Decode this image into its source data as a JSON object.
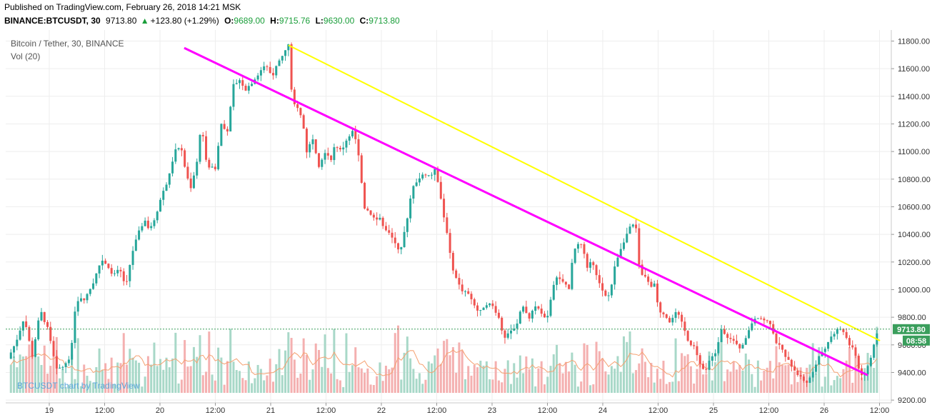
{
  "header": {
    "published": "Published on TradingView.com, February 26, 2018 14:21 MSK",
    "symbol": "BINANCE:BTCUSDT, 30",
    "last": "9713.80",
    "change": "+123.80 (+1.29%)",
    "o_label": "O:",
    "o_value": "9689.00",
    "h_label": "H:",
    "h_value": "9715.76",
    "l_label": "L:",
    "l_value": "9630.00",
    "c_label": "C:",
    "c_value": "9713.80"
  },
  "legend": {
    "title": "Bitcoin / Tether, 30, BINANCE",
    "volume": "Vol (20)"
  },
  "watermark": "BTCUSDT chart by TradingView",
  "colors": {
    "up": "#26a69a",
    "down": "#ef5350",
    "up_vol": "#a8d8c8",
    "down_vol": "#f4b0b0",
    "trend_magenta": "#ff00ff",
    "trend_yellow": "#ffff00",
    "last_price_bg": "#3a9e5c",
    "vol_ma": "#f5a070"
  },
  "chart_data": {
    "type": "candlestick",
    "ylim": [
      9180,
      11880
    ],
    "y_ticks": [
      9200,
      9400,
      9600,
      9800,
      10000,
      10200,
      10400,
      10600,
      10800,
      11000,
      11200,
      11400,
      11600,
      11800
    ],
    "y_tick_labels": [
      "9200.00",
      "9400.00",
      "9600.00",
      "9800.00",
      "10000.00",
      "10200.00",
      "10400.00",
      "10600.00",
      "10800.00",
      "11000.00",
      "11200.00",
      "11400.00",
      "11600.00",
      "11800.00"
    ],
    "x_ticks": [
      "19",
      "12:00",
      "20",
      "12:00",
      "21",
      "12:00",
      "22",
      "12:00",
      "23",
      "12:00",
      "24",
      "12:00",
      "25",
      "12:00",
      "26",
      "12:00"
    ],
    "last_price_label": "9713.80",
    "countdown_label": "08:58",
    "price_path": [
      [
        0,
        9500
      ],
      [
        8,
        9620
      ],
      [
        16,
        9800
      ],
      [
        24,
        9520
      ],
      [
        32,
        9850
      ],
      [
        40,
        9700
      ],
      [
        48,
        9420
      ],
      [
        56,
        9450
      ],
      [
        62,
        9520
      ],
      [
        66,
        9850
      ],
      [
        70,
        9950
      ],
      [
        76,
        9930
      ],
      [
        84,
        10050
      ],
      [
        92,
        10220
      ],
      [
        98,
        10180
      ],
      [
        104,
        10100
      ],
      [
        110,
        10150
      ],
      [
        116,
        10020
      ],
      [
        122,
        10260
      ],
      [
        128,
        10400
      ],
      [
        134,
        10500
      ],
      [
        140,
        10430
      ],
      [
        146,
        10550
      ],
      [
        152,
        10700
      ],
      [
        158,
        10800
      ],
      [
        164,
        11000
      ],
      [
        170,
        11040
      ],
      [
        176,
        10820
      ],
      [
        180,
        10730
      ],
      [
        186,
        10920
      ],
      [
        190,
        11200
      ],
      [
        196,
        10900
      ],
      [
        204,
        10880
      ],
      [
        210,
        11200
      ],
      [
        216,
        11150
      ],
      [
        222,
        11480
      ],
      [
        228,
        11520
      ],
      [
        234,
        11450
      ],
      [
        240,
        11500
      ],
      [
        246,
        11560
      ],
      [
        252,
        11620
      ],
      [
        256,
        11600
      ],
      [
        260,
        11540
      ],
      [
        266,
        11650
      ],
      [
        272,
        11720
      ],
      [
        276,
        11770
      ],
      [
        280,
        11350
      ],
      [
        286,
        11300
      ],
      [
        290,
        11220
      ],
      [
        294,
        11000
      ],
      [
        300,
        11100
      ],
      [
        306,
        10900
      ],
      [
        312,
        11000
      ],
      [
        318,
        10950
      ],
      [
        322,
        11050
      ],
      [
        328,
        11000
      ],
      [
        334,
        11100
      ],
      [
        340,
        11150
      ],
      [
        346,
        10950
      ],
      [
        350,
        10600
      ],
      [
        356,
        10560
      ],
      [
        362,
        10500
      ],
      [
        366,
        10520
      ],
      [
        370,
        10440
      ],
      [
        376,
        10400
      ],
      [
        380,
        10350
      ],
      [
        386,
        10280
      ],
      [
        392,
        10480
      ],
      [
        398,
        10750
      ],
      [
        404,
        10800
      ],
      [
        410,
        10840
      ],
      [
        416,
        10820
      ],
      [
        420,
        10880
      ],
      [
        424,
        10760
      ],
      [
        428,
        10560
      ],
      [
        432,
        10420
      ],
      [
        436,
        10200
      ],
      [
        440,
        10100
      ],
      [
        446,
        10000
      ],
      [
        452,
        9980
      ],
      [
        456,
        9920
      ],
      [
        460,
        9870
      ],
      [
        464,
        9830
      ],
      [
        470,
        9900
      ],
      [
        476,
        9890
      ],
      [
        482,
        9820
      ],
      [
        488,
        9650
      ],
      [
        494,
        9700
      ],
      [
        500,
        9720
      ],
      [
        506,
        9900
      ],
      [
        512,
        9780
      ],
      [
        518,
        9880
      ],
      [
        524,
        9850
      ],
      [
        530,
        9760
      ],
      [
        536,
        10000
      ],
      [
        540,
        10100
      ],
      [
        546,
        10050
      ],
      [
        552,
        10000
      ],
      [
        556,
        10250
      ],
      [
        562,
        10360
      ],
      [
        566,
        10280
      ],
      [
        570,
        10150
      ],
      [
        574,
        10200
      ],
      [
        580,
        10100
      ],
      [
        584,
        10000
      ],
      [
        588,
        9950
      ],
      [
        592,
        9960
      ],
      [
        598,
        10200
      ],
      [
        604,
        10320
      ],
      [
        610,
        10420
      ],
      [
        614,
        10470
      ],
      [
        618,
        10450
      ],
      [
        622,
        10100
      ],
      [
        628,
        10100
      ],
      [
        632,
        10000
      ],
      [
        636,
        10050
      ],
      [
        640,
        9850
      ],
      [
        646,
        9820
      ],
      [
        652,
        9760
      ],
      [
        658,
        9840
      ],
      [
        664,
        9740
      ],
      [
        670,
        9620
      ],
      [
        676,
        9580
      ],
      [
        682,
        9440
      ],
      [
        686,
        9390
      ],
      [
        690,
        9480
      ],
      [
        696,
        9540
      ],
      [
        702,
        9720
      ],
      [
        708,
        9660
      ],
      [
        714,
        9620
      ],
      [
        720,
        9580
      ],
      [
        726,
        9640
      ],
      [
        732,
        9760
      ],
      [
        738,
        9800
      ],
      [
        744,
        9780
      ],
      [
        750,
        9760
      ],
      [
        756,
        9620
      ],
      [
        762,
        9560
      ],
      [
        768,
        9480
      ],
      [
        774,
        9420
      ],
      [
        780,
        9360
      ],
      [
        786,
        9330
      ],
      [
        792,
        9400
      ],
      [
        798,
        9520
      ],
      [
        804,
        9560
      ],
      [
        810,
        9660
      ],
      [
        816,
        9720
      ],
      [
        822,
        9700
      ],
      [
        828,
        9600
      ],
      [
        832,
        9560
      ],
      [
        836,
        9460
      ],
      [
        840,
        9380
      ],
      [
        844,
        9400
      ],
      [
        848,
        9480
      ],
      [
        852,
        9600
      ],
      [
        856,
        9713.8
      ]
    ],
    "trendlines": [
      {
        "name": "",
        "color": "magenta",
        "from": [
          40,
          11750
        ],
        "to": [
          846,
          9380
        ]
      },
      {
        "name": "",
        "color": "yellow",
        "from": [
          276,
          11770
        ],
        "to": [
          858,
          9630
        ]
      }
    ]
  }
}
